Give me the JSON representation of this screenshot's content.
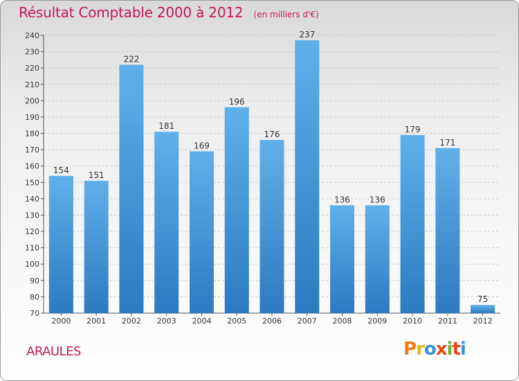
{
  "title": "Résultat Comptable 2000 à 2012",
  "unit": "(en milliers d'€)",
  "commune": "ARAULES",
  "logo": {
    "text": "Proxiti",
    "colors": [
      "#f07c12",
      "#e8b41a",
      "#3a8fd8",
      "#e8461a",
      "#6bb02e",
      "#e8461a",
      "#3a8fd8"
    ]
  },
  "colors": {
    "title": "#c4185c",
    "bar_top": "#5fb0ea",
    "bar_bottom": "#2c7ac0",
    "grid": "#c8c8c8"
  },
  "chart_data": {
    "type": "bar",
    "title": "Résultat Comptable 2000 à 2012",
    "categories": [
      "2000",
      "2001",
      "2002",
      "2003",
      "2004",
      "2005",
      "2006",
      "2007",
      "2008",
      "2009",
      "2010",
      "2011",
      "2012"
    ],
    "values": [
      154,
      151,
      222,
      181,
      169,
      196,
      176,
      237,
      136,
      136,
      179,
      171,
      75
    ],
    "ylim": [
      70,
      240
    ],
    "yticks": [
      70,
      80,
      90,
      100,
      110,
      120,
      130,
      140,
      150,
      160,
      170,
      180,
      190,
      200,
      210,
      220,
      230,
      240
    ],
    "xlabel": "",
    "ylabel": "",
    "grid": true
  }
}
